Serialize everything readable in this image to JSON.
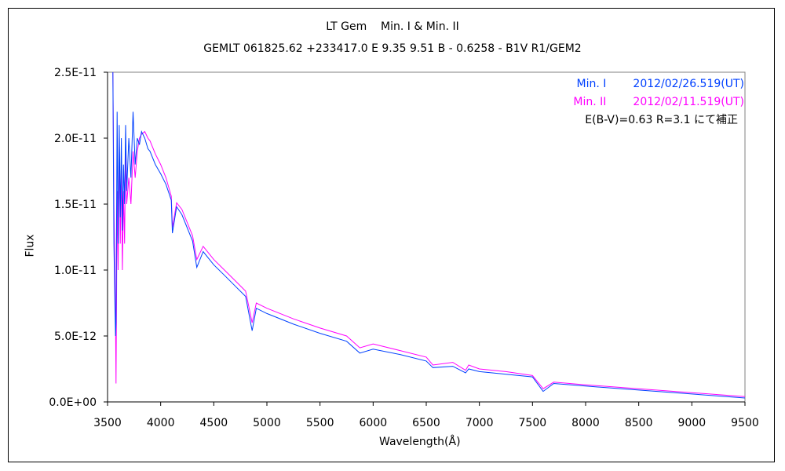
{
  "chart_data": {
    "type": "line",
    "title": "LT Gem    Min. I & Min. II",
    "subtitle": "GEMLT 061825.62 +233417.0 E 9.35 9.51 B - 0.6258 - B1V R1/GEM2",
    "xlabel": "Wavelength(Å)",
    "ylabel": "Flux",
    "xlim": [
      3500,
      9500
    ],
    "ylim": [
      0,
      2.5e-11
    ],
    "y_unit_scale": 1e-12,
    "xticks": [
      3500,
      4000,
      4500,
      5000,
      5500,
      6000,
      6500,
      7000,
      7500,
      8000,
      8500,
      9000,
      9500
    ],
    "yticks": [
      {
        "v": 0,
        "label": "0.0E+00"
      },
      {
        "v": 5,
        "label": "5.0E-12"
      },
      {
        "v": 10,
        "label": "1.0E-11"
      },
      {
        "v": 15,
        "label": "1.5E-11"
      },
      {
        "v": 20,
        "label": "2.0E-11"
      },
      {
        "v": 25,
        "label": "2.5E-11"
      }
    ],
    "grid": false,
    "legend_position": "top-right",
    "note": "E(B-V)=0.63 R=3.1  にて補正",
    "series": [
      {
        "name": "Min. I",
        "date": "2012/02/26.519(UT)",
        "color": "#0040ff",
        "x": [
          3550,
          3560,
          3570,
          3575,
          3580,
          3590,
          3600,
          3610,
          3620,
          3630,
          3640,
          3650,
          3660,
          3670,
          3680,
          3700,
          3720,
          3740,
          3760,
          3780,
          3800,
          3820,
          3850,
          3880,
          3900,
          3950,
          4000,
          4050,
          4100,
          4110,
          4150,
          4200,
          4300,
          4340,
          4400,
          4500,
          4600,
          4700,
          4800,
          4861,
          4900,
          5000,
          5250,
          5500,
          5750,
          5875,
          6000,
          6250,
          6500,
          6563,
          6750,
          6870,
          6900,
          7000,
          7250,
          7500,
          7600,
          7700,
          8000,
          8500,
          9000,
          9500
        ],
        "y": [
          25,
          12,
          7,
          5,
          6,
          22,
          12,
          21,
          14,
          20,
          13,
          18,
          15,
          21,
          16,
          20,
          17,
          22,
          18,
          20,
          19.5,
          20.5,
          20,
          19.2,
          19,
          18,
          17.3,
          16.5,
          15.3,
          12.8,
          14.8,
          14.2,
          12.2,
          10.2,
          11.4,
          10.4,
          9.6,
          8.8,
          8.0,
          5.4,
          7.1,
          6.7,
          5.9,
          5.2,
          4.6,
          3.7,
          4.0,
          3.6,
          3.1,
          2.6,
          2.7,
          2.2,
          2.5,
          2.3,
          2.1,
          1.9,
          0.8,
          1.4,
          1.2,
          0.9,
          0.6,
          0.3
        ]
      },
      {
        "name": "Min. II",
        "date": "2012/02/11.519(UT)",
        "color": "#ff00ff",
        "x": [
          3550,
          3560,
          3570,
          3575,
          3580,
          3585,
          3590,
          3600,
          3610,
          3620,
          3630,
          3640,
          3650,
          3660,
          3670,
          3680,
          3700,
          3720,
          3740,
          3760,
          3780,
          3800,
          3820,
          3850,
          3880,
          3900,
          3950,
          4000,
          4050,
          4100,
          4110,
          4150,
          4200,
          4300,
          4340,
          4400,
          4500,
          4600,
          4700,
          4800,
          4861,
          4900,
          5000,
          5250,
          5500,
          5750,
          5875,
          6000,
          6250,
          6500,
          6563,
          6750,
          6870,
          6900,
          7000,
          7250,
          7500,
          7600,
          7700,
          8000,
          8500,
          9000,
          9500
        ],
        "y": [
          25,
          15,
          9,
          6,
          1.4,
          8,
          16,
          10,
          20,
          12,
          18,
          10,
          16,
          12,
          19,
          15,
          17,
          15,
          19,
          17,
          19,
          20,
          20.3,
          20.5,
          20,
          19.8,
          18.8,
          18,
          17,
          15.6,
          13.2,
          15.1,
          14.6,
          12.6,
          10.8,
          11.8,
          10.8,
          10,
          9.2,
          8.4,
          6.0,
          7.5,
          7.1,
          6.3,
          5.6,
          5.0,
          4.1,
          4.4,
          3.9,
          3.4,
          2.8,
          3.0,
          2.4,
          2.8,
          2.5,
          2.3,
          2.0,
          1.0,
          1.5,
          1.3,
          1.0,
          0.7,
          0.4
        ]
      }
    ]
  }
}
